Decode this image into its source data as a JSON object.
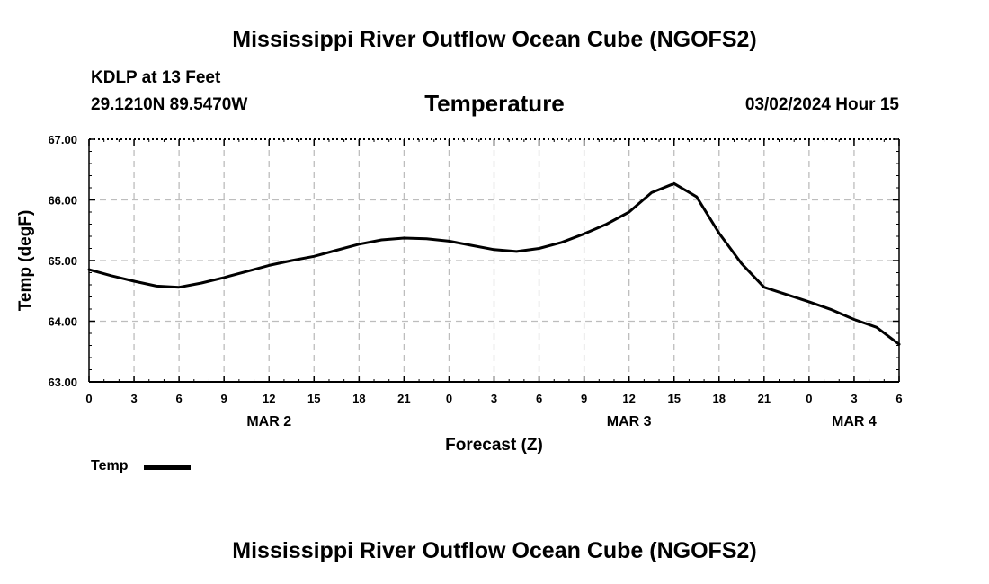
{
  "header": {
    "title": "Mississippi River Outflow Ocean Cube (NGOFS2)",
    "station": "KDLP at 13 Feet",
    "coords": "29.1210N  89.5470W",
    "datetime": "03/02/2024 Hour 15"
  },
  "footer": {
    "title": "Mississippi River Outflow Ocean Cube (NGOFS2)"
  },
  "chart_data": {
    "type": "line",
    "title": "Temperature",
    "xlabel": "Forecast (Z)",
    "ylabel": "Temp (degF)",
    "xlim": [
      0,
      54
    ],
    "ylim": [
      63.0,
      67.0
    ],
    "grid": true,
    "legend_position": "bottom-left",
    "y_tick_values": [
      63,
      64,
      65,
      66,
      67
    ],
    "y_tick_labels": [
      "63.00",
      "64.00",
      "65.00",
      "66.00",
      "67.00"
    ],
    "x_tick_values": [
      0,
      3,
      6,
      9,
      12,
      15,
      18,
      21,
      24,
      27,
      30,
      33,
      36,
      39,
      42,
      45,
      48,
      51,
      54
    ],
    "x_tick_labels": [
      "0",
      "3",
      "6",
      "9",
      "12",
      "15",
      "18",
      "21",
      "0",
      "3",
      "6",
      "9",
      "12",
      "15",
      "18",
      "21",
      "0",
      "3",
      "6"
    ],
    "day_labels": [
      {
        "label": "MAR 2",
        "at": 12
      },
      {
        "label": "MAR 3",
        "at": 36
      },
      {
        "label": "MAR 4",
        "at": 51
      }
    ],
    "series": [
      {
        "name": "Temp",
        "color": "#000000",
        "x": [
          0,
          1.5,
          3,
          4.5,
          6,
          7.5,
          9,
          10.5,
          12,
          13.5,
          15,
          16.5,
          18,
          19.5,
          21,
          22.5,
          24,
          25.5,
          27,
          28.5,
          30,
          31.5,
          33,
          34.5,
          36,
          37.5,
          39,
          40.5,
          42,
          43.5,
          45,
          46.5,
          48,
          49.5,
          51,
          52.5,
          54
        ],
        "values": [
          64.85,
          64.75,
          64.66,
          64.58,
          64.56,
          64.63,
          64.72,
          64.82,
          64.92,
          65.0,
          65.07,
          65.17,
          65.27,
          65.34,
          65.37,
          65.36,
          65.32,
          65.25,
          65.18,
          65.15,
          65.2,
          65.3,
          65.44,
          65.6,
          65.8,
          66.12,
          66.27,
          66.05,
          65.45,
          64.95,
          64.56,
          64.44,
          64.32,
          64.19,
          64.03,
          63.9,
          63.62
        ]
      }
    ]
  }
}
